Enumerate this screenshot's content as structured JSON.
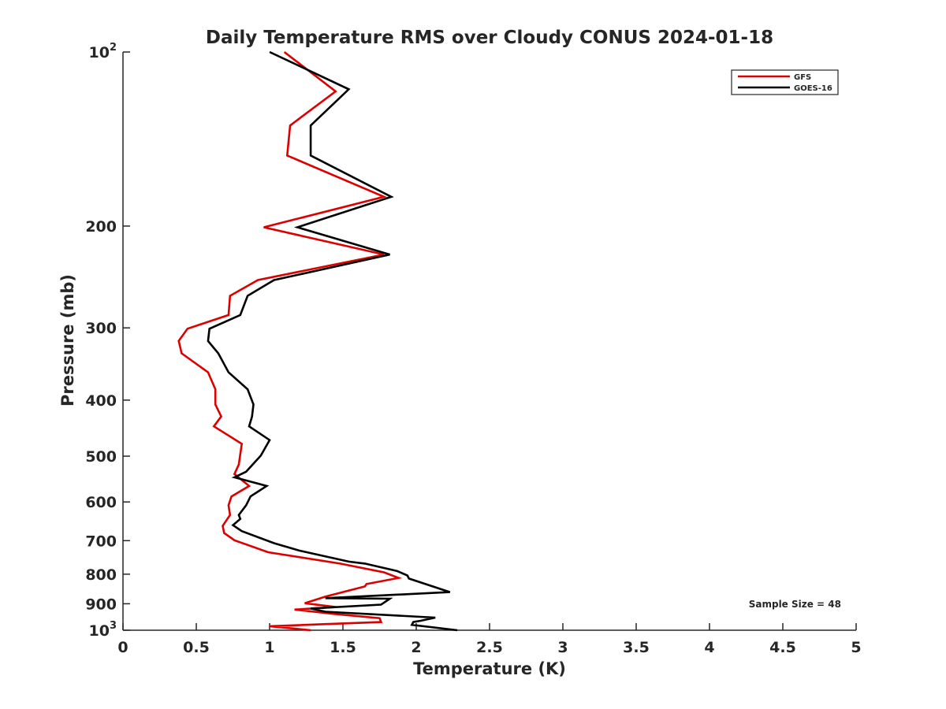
{
  "chart_data": {
    "type": "line",
    "title": "Daily Temperature RMS over Cloudy CONUS 2024-01-18",
    "xlabel": "Temperature (K)",
    "ylabel": "Pressure (mb)",
    "xlim": [
      0,
      5
    ],
    "ylim": [
      1000,
      100
    ],
    "yscale": "log",
    "y_reversed": true,
    "x_ticks": [
      "0",
      "0.5",
      "1",
      "1.5",
      "2",
      "2.5",
      "3",
      "3.5",
      "4",
      "4.5",
      "5"
    ],
    "y_ticks": [
      {
        "value": 100,
        "label": "10",
        "sup": "2"
      },
      {
        "value": 200,
        "label": "200"
      },
      {
        "value": 300,
        "label": "300"
      },
      {
        "value": 400,
        "label": "400"
      },
      {
        "value": 500,
        "label": "500"
      },
      {
        "value": 600,
        "label": "600"
      },
      {
        "value": 700,
        "label": "700"
      },
      {
        "value": 800,
        "label": "800"
      },
      {
        "value": 900,
        "label": "900"
      },
      {
        "value": 1000,
        "label": "10",
        "sup": "3"
      }
    ],
    "legend_position": "top-right",
    "annotation": "Sample Size = 48",
    "series": [
      {
        "name": "GFS",
        "color": "#dd0000",
        "points": [
          [
            1.1,
            100
          ],
          [
            1.45,
            117
          ],
          [
            1.14,
            134
          ],
          [
            1.12,
            151
          ],
          [
            1.78,
            178
          ],
          [
            0.96,
            201
          ],
          [
            1.78,
            224
          ],
          [
            0.92,
            248
          ],
          [
            0.73,
            264
          ],
          [
            0.72,
            285
          ],
          [
            0.44,
            301
          ],
          [
            0.38,
            316
          ],
          [
            0.4,
            332
          ],
          [
            0.58,
            358
          ],
          [
            0.63,
            383
          ],
          [
            0.63,
            407
          ],
          [
            0.67,
            427
          ],
          [
            0.62,
            444
          ],
          [
            0.81,
            476
          ],
          [
            0.79,
            517
          ],
          [
            0.76,
            537
          ],
          [
            0.86,
            563
          ],
          [
            0.74,
            587
          ],
          [
            0.72,
            608
          ],
          [
            0.73,
            632
          ],
          [
            0.68,
            660
          ],
          [
            0.69,
            679
          ],
          [
            0.76,
            699
          ],
          [
            0.99,
            733
          ],
          [
            1.48,
            767
          ],
          [
            1.78,
            794
          ],
          [
            1.88,
            812
          ],
          [
            1.66,
            832
          ],
          [
            1.65,
            840
          ],
          [
            1.38,
            875
          ],
          [
            1.24,
            898
          ],
          [
            1.45,
            912
          ],
          [
            1.17,
            921
          ],
          [
            1.44,
            937
          ],
          [
            1.75,
            953
          ],
          [
            1.76,
            968
          ],
          [
            1.0,
            984
          ],
          [
            1.28,
            1000
          ]
        ]
      },
      {
        "name": "GOES-16",
        "color": "#000000",
        "points": [
          [
            1.0,
            100
          ],
          [
            1.54,
            116
          ],
          [
            1.28,
            134
          ],
          [
            1.28,
            151
          ],
          [
            1.83,
            178
          ],
          [
            1.19,
            201
          ],
          [
            1.82,
            224
          ],
          [
            1.03,
            248
          ],
          [
            0.85,
            264
          ],
          [
            0.8,
            285
          ],
          [
            0.59,
            301
          ],
          [
            0.58,
            316
          ],
          [
            0.65,
            332
          ],
          [
            0.72,
            358
          ],
          [
            0.85,
            383
          ],
          [
            0.89,
            407
          ],
          [
            0.88,
            427
          ],
          [
            0.86,
            444
          ],
          [
            1.0,
            469
          ],
          [
            0.94,
            499
          ],
          [
            0.84,
            532
          ],
          [
            0.76,
            544
          ],
          [
            0.98,
            563
          ],
          [
            0.87,
            587
          ],
          [
            0.84,
            608
          ],
          [
            0.79,
            632
          ],
          [
            0.8,
            642
          ],
          [
            0.75,
            658
          ],
          [
            0.81,
            674
          ],
          [
            1.03,
            707
          ],
          [
            1.2,
            728
          ],
          [
            1.54,
            761
          ],
          [
            1.65,
            767
          ],
          [
            1.87,
            790
          ],
          [
            1.94,
            804
          ],
          [
            1.95,
            814
          ],
          [
            2.23,
            859
          ],
          [
            1.38,
            880
          ],
          [
            1.82,
            882
          ],
          [
            1.76,
            903
          ],
          [
            1.28,
            917
          ],
          [
            1.38,
            929
          ],
          [
            2.13,
            951
          ],
          [
            2.03,
            963
          ],
          [
            1.98,
            968
          ],
          [
            1.97,
            979
          ],
          [
            2.28,
            1000
          ]
        ]
      }
    ]
  }
}
